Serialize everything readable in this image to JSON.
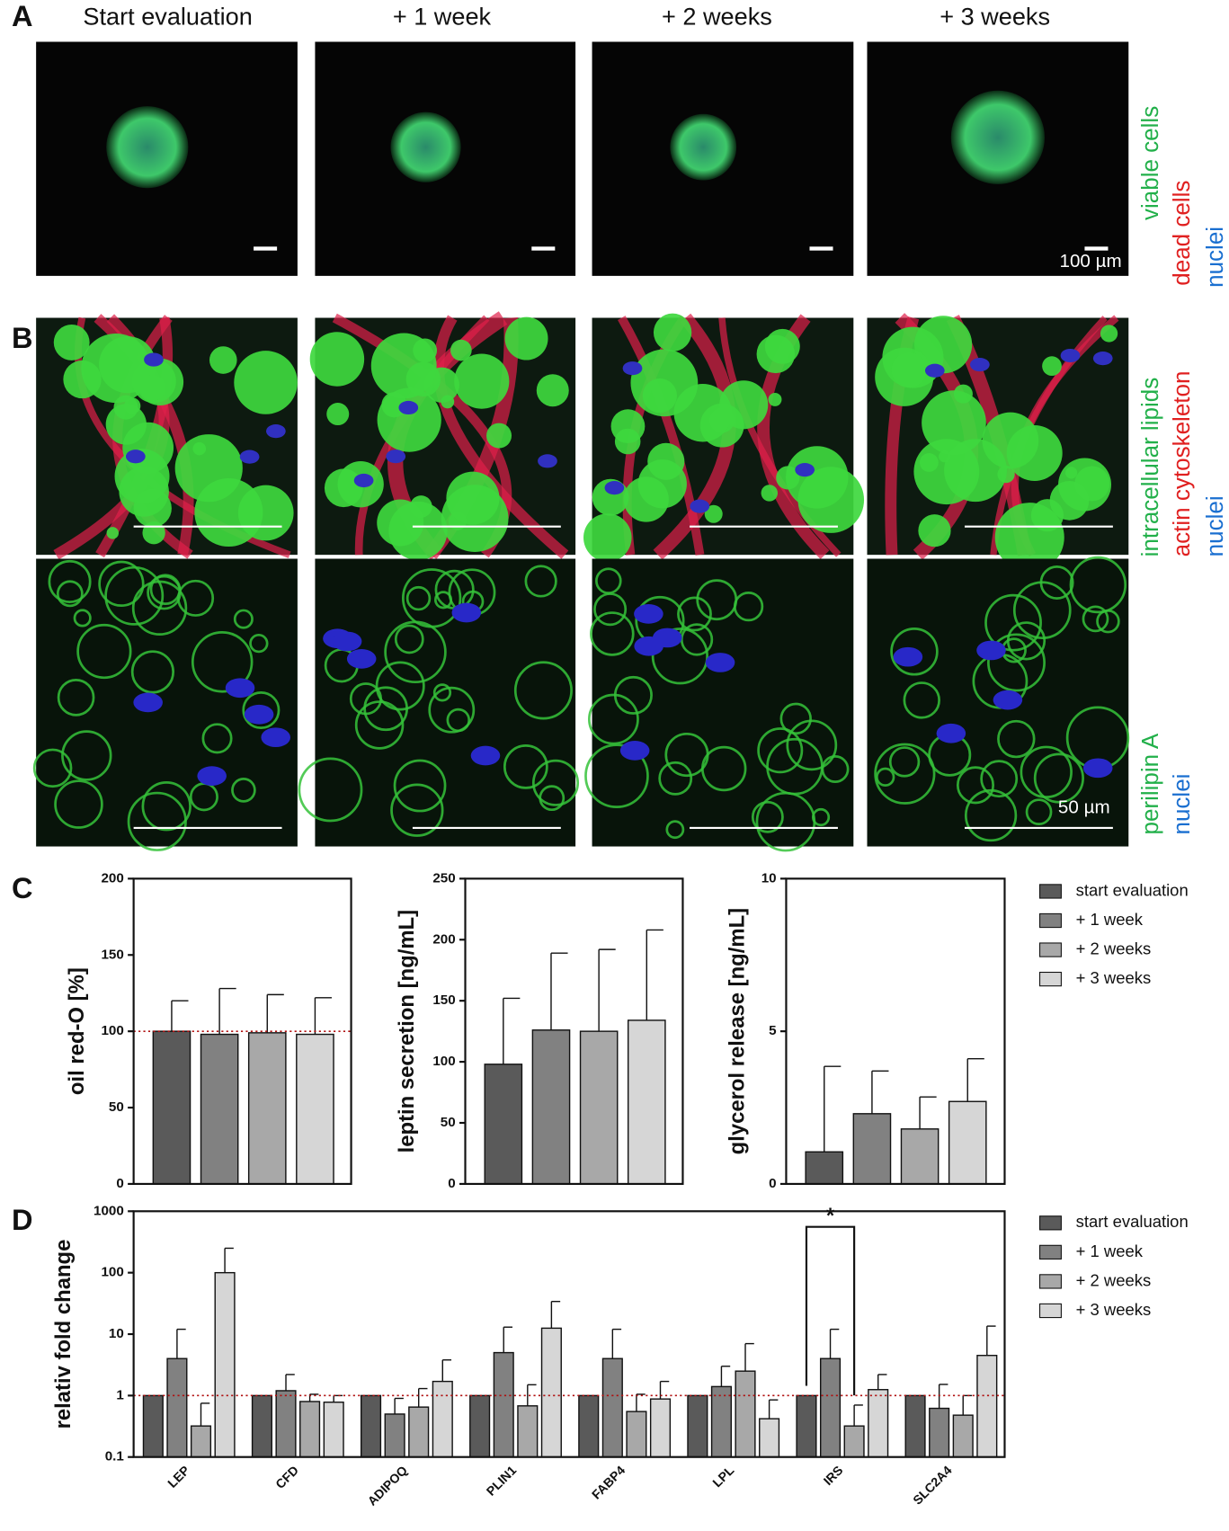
{
  "figure": {
    "panels": [
      "A",
      "B",
      "C",
      "D"
    ],
    "columns": [
      "Start evaluation",
      "+ 1 week",
      "+ 2 weeks",
      "+ 3 weeks"
    ],
    "stains_a": [
      "viable cells",
      "dead cells",
      "nuclei"
    ],
    "stains_b1": [
      "intracellular lipids",
      "actin cytoskeleton",
      "nuclei"
    ],
    "stains_b2": [
      "perilipin A",
      "nuclei"
    ],
    "scale_a": "100 µm",
    "scale_b": "50 µm"
  },
  "chart_data": [
    {
      "type": "bar",
      "y_label": "oil red-O [%]",
      "categories": [
        null
      ],
      "ylim": [
        0,
        200
      ],
      "yticks": [
        0,
        50,
        100,
        150,
        200
      ],
      "reference_line": 100,
      "series": [
        {
          "color": "#5a5a5a",
          "values": [
            100
          ],
          "errors": [
            20
          ]
        },
        {
          "color": "#818181",
          "values": [
            98
          ],
          "errors": [
            30
          ]
        },
        {
          "color": "#a8a8a8",
          "values": [
            99
          ],
          "errors": [
            25
          ]
        },
        {
          "color": "#d6d6d6",
          "values": [
            98
          ],
          "errors": [
            24
          ]
        }
      ]
    },
    {
      "type": "bar",
      "y_label": "leptin secretion [ng/mL]",
      "categories": [
        null
      ],
      "ylim": [
        0,
        250
      ],
      "yticks": [
        0,
        50,
        100,
        150,
        200,
        250
      ],
      "series": [
        {
          "color": "#5a5a5a",
          "values": [
            98
          ],
          "errors": [
            54
          ]
        },
        {
          "color": "#818181",
          "values": [
            126
          ],
          "errors": [
            63
          ]
        },
        {
          "color": "#a8a8a8",
          "values": [
            125
          ],
          "errors": [
            67
          ]
        },
        {
          "color": "#d6d6d6",
          "values": [
            134
          ],
          "errors": [
            74
          ]
        }
      ]
    },
    {
      "type": "bar",
      "y_label": "glycerol release [ng/mL]",
      "categories": [
        null
      ],
      "ylim": [
        0,
        10
      ],
      "yticks": [
        0,
        5,
        10
      ],
      "legend": "right",
      "series": [
        {
          "name": "start evaluation",
          "color": "#5a5a5a",
          "values": [
            1.05
          ],
          "errors": [
            2.8
          ]
        },
        {
          "name": "+ 1 week",
          "color": "#818181",
          "values": [
            2.3
          ],
          "errors": [
            1.4
          ]
        },
        {
          "name": "+ 2 weeks",
          "color": "#a8a8a8",
          "values": [
            1.8
          ],
          "errors": [
            1.05
          ]
        },
        {
          "name": "+ 3 weeks",
          "color": "#d6d6d6",
          "values": [
            2.7
          ],
          "errors": [
            1.4
          ]
        }
      ]
    },
    {
      "type": "bar",
      "y_label": "relativ fold change",
      "log_scale": true,
      "legend": "right",
      "reference_line": 1,
      "categories": [
        "LEP",
        "CFD",
        "ADIPOQ",
        "PLIN1",
        "FABP4",
        "LPL",
        "IRS",
        "SLC2A4"
      ],
      "ylim": [
        0.1,
        1000
      ],
      "yticks": [
        0.1,
        1,
        10,
        100,
        1000
      ],
      "annotations": [
        {
          "text": "*",
          "category": "IRS",
          "series": [
            "start evaluation",
            "+ 2 weeks"
          ]
        }
      ],
      "series": [
        {
          "name": "start evaluation",
          "color": "#5a5a5a",
          "values": [
            1,
            1,
            1,
            1,
            1,
            1,
            1,
            1
          ],
          "errors": [
            null,
            null,
            null,
            null,
            null,
            null,
            null,
            null
          ]
        },
        {
          "name": "+ 1 week",
          "color": "#818181",
          "values": [
            4,
            1.2,
            0.5,
            5,
            4,
            1.4,
            4,
            0.62
          ],
          "errors": [
            8,
            1.0,
            0.4,
            8,
            8,
            1.6,
            8,
            0.9
          ]
        },
        {
          "name": "+ 2 weeks",
          "color": "#a8a8a8",
          "values": [
            0.32,
            0.8,
            0.65,
            0.68,
            0.55,
            2.5,
            0.32,
            0.48
          ],
          "errors": [
            0.43,
            0.25,
            0.65,
            0.82,
            0.5,
            4.5,
            0.38,
            0.52
          ]
        },
        {
          "name": "+ 3 weeks",
          "color": "#d6d6d6",
          "values": [
            100,
            0.78,
            1.7,
            12.5,
            0.88,
            0.42,
            1.25,
            4.5
          ],
          "errors": [
            150,
            0.22,
            2.1,
            21.5,
            0.82,
            0.43,
            0.95,
            9
          ]
        }
      ]
    }
  ]
}
